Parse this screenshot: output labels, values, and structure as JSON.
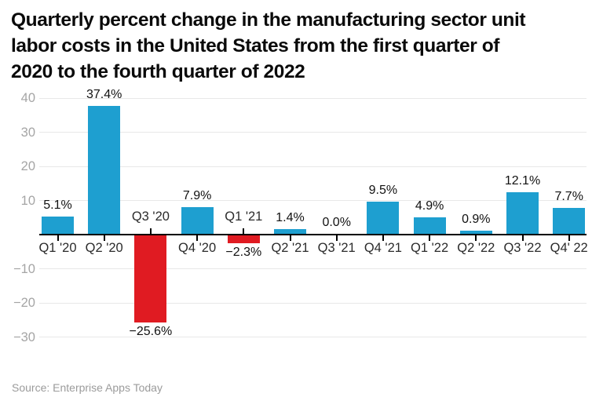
{
  "title_lines": {
    "0": "Quarterly percent change in the manufacturing sector unit",
    "1": "labor costs in the United States from the first quarter of",
    "2": "2020 to the fourth quarter of 2022"
  },
  "source": "Source: Enterprise Apps Today",
  "colors": {
    "positive_bar": "#1E9FD0",
    "negative_bar": "#E01B22",
    "grid": "#e8e8e8",
    "axis": "#000000",
    "y_label": "#a5a5a5",
    "category_label": "#2b2b2b",
    "value_label": "#111111"
  },
  "chart_data": {
    "type": "bar",
    "title": "Quarterly percent change in the manufacturing sector unit labor costs in the United States from the first quarter of 2020 to the fourth quarter of 2022",
    "categories": [
      "Q1 '20",
      "Q2 '20",
      "Q3 '20",
      "Q4 '20",
      "Q1 '21",
      "Q2 '21",
      "Q3 '21",
      "Q4 '21",
      "Q1 '22",
      "Q2 '22",
      "Q3 '22",
      "Q4' 22"
    ],
    "values": [
      5.1,
      37.4,
      -25.6,
      7.9,
      -2.3,
      1.4,
      0.0,
      9.5,
      4.9,
      0.9,
      12.1,
      7.7
    ],
    "value_labels": [
      "5.1%",
      "37.4%",
      "−25.6%",
      "7.9%",
      "−2.3%",
      "1.4%",
      "0.0%",
      "9.5%",
      "4.9%",
      "0.9%",
      "12.1%",
      "7.7%"
    ],
    "xlabel": "",
    "ylabel": "",
    "ylim": [
      -30,
      40
    ],
    "yticks": [
      40,
      30,
      20,
      10,
      -10,
      -20,
      -30
    ],
    "ytick_labels": [
      "40",
      "30",
      "20",
      "10",
      "−10",
      "−20",
      "−30"
    ],
    "grid": true,
    "legend": false
  }
}
